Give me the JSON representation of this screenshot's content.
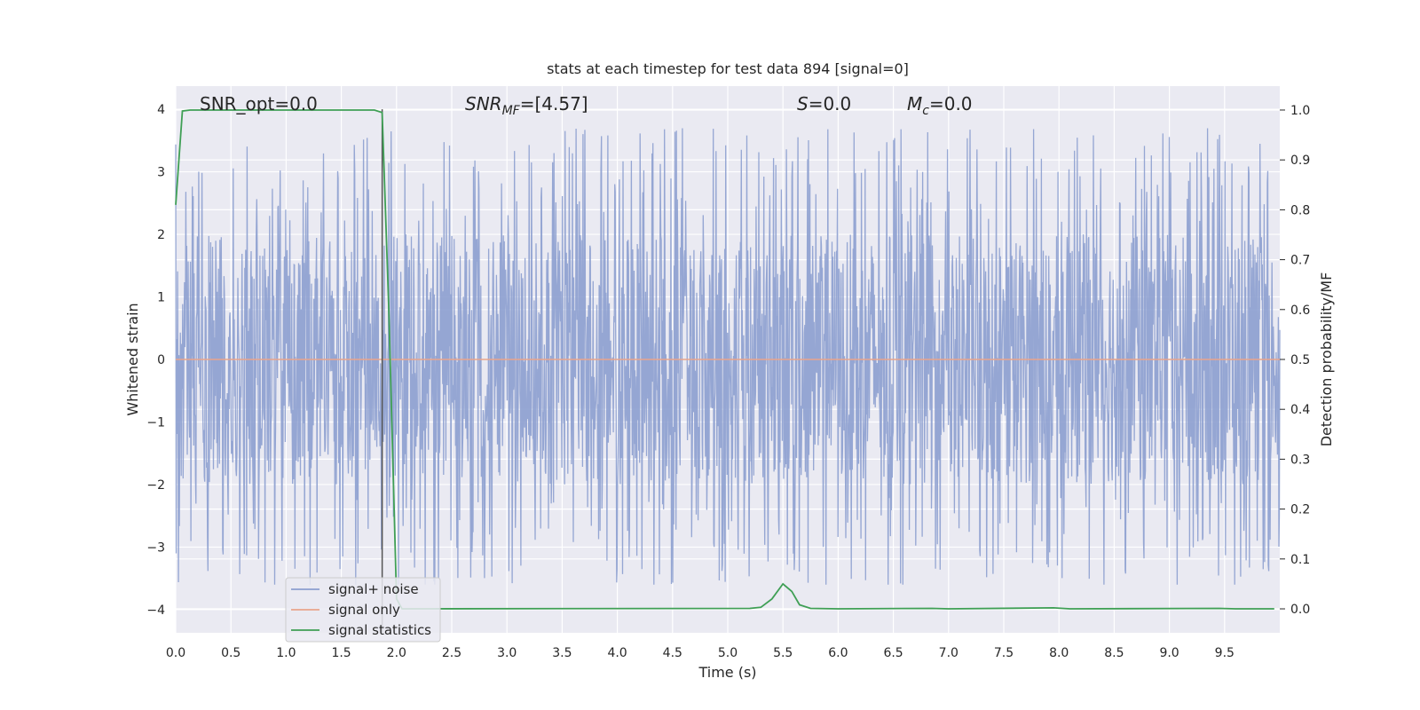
{
  "chart_data": {
    "type": "line",
    "title": "stats at each timestep for test data 894 [signal=0]",
    "xlabel": "Time (s)",
    "ylabel": "Whitened strain",
    "ylabel_right": "Detection probability/MF",
    "xlim": [
      0.0,
      10.0
    ],
    "ylim": [
      -4.37,
      4.37
    ],
    "ylim_right": [
      -0.048,
      1.048
    ],
    "x_ticks": [
      "0.0",
      "0.5",
      "1.0",
      "1.5",
      "2.0",
      "2.5",
      "3.0",
      "3.5",
      "4.0",
      "4.5",
      "5.0",
      "5.5",
      "6.0",
      "6.5",
      "7.0",
      "7.5",
      "8.0",
      "8.5",
      "9.0",
      "9.5"
    ],
    "y_ticks": [
      "4",
      "3",
      "2",
      "1",
      "0",
      "−1",
      "−2",
      "−3",
      "−4"
    ],
    "y_right_ticks": [
      "1.0",
      "0.9",
      "0.8",
      "0.7",
      "0.6",
      "0.5",
      "0.4",
      "0.3",
      "0.2",
      "0.1",
      "0.0"
    ],
    "annotations": {
      "snr_opt": "SNR_opt=0.0",
      "snr_mf_name": "SNR",
      "snr_mf_sub": "MF",
      "snr_mf_value": "=[4.57]",
      "s_name": "S",
      "s_value": "=0.0",
      "mc_name": "M",
      "mc_sub": "c",
      "mc_value": "=0.0"
    },
    "grid": true,
    "legend_position": "lower-left",
    "series": [
      {
        "name": "signal+ noise",
        "color": "#8c9fcf",
        "description_of_values": "whitened strain noise, approx. uniform band",
        "amplitude_bulk": 2.0,
        "peak_max": 4.0,
        "peak_min": -3.6
      },
      {
        "name": "signal only",
        "color": "#e8a48b",
        "x": [
          0.0,
          10.0
        ],
        "y": [
          0.0,
          0.0
        ]
      },
      {
        "name": "signal statistics",
        "color": "#3f9f55",
        "axis": "right",
        "x": [
          0.0,
          0.06,
          0.13,
          1.8,
          1.87,
          1.93,
          2.0,
          2.05,
          5.2,
          5.3,
          5.4,
          5.5,
          5.58,
          5.65,
          5.75,
          6.0,
          6.85,
          7.0,
          7.95,
          8.1,
          9.45,
          9.6,
          9.95
        ],
        "y": [
          0.81,
          0.998,
          1.0,
          1.0,
          0.995,
          0.6,
          0.02,
          0.0,
          0.001,
          0.003,
          0.02,
          0.05,
          0.035,
          0.008,
          0.001,
          0.0,
          0.001,
          0.0,
          0.002,
          0.0,
          0.001,
          0.0,
          0.0
        ]
      }
    ],
    "marker_line": {
      "x": 1.87,
      "color": "#555555"
    }
  }
}
